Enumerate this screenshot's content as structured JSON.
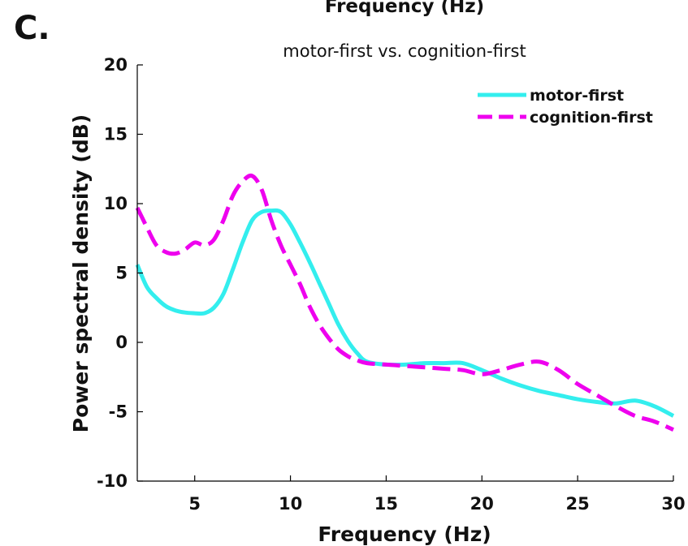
{
  "figure": {
    "panel_label": "C.",
    "clipped_top_label": "Frequency (Hz)"
  },
  "chart_data": {
    "type": "line",
    "title": "motor-first vs. cognition-first",
    "xlabel": "Frequency (Hz)",
    "ylabel": "Power spectral density (dB)",
    "xlim": [
      2,
      30
    ],
    "ylim": [
      -10,
      20
    ],
    "xticks": [
      5,
      10,
      15,
      20,
      25,
      30
    ],
    "xtick_labels": [
      "5",
      "10",
      "15",
      "20",
      "25",
      "30"
    ],
    "yticks": [
      -10,
      -5,
      0,
      5,
      10,
      15,
      20
    ],
    "ytick_labels": [
      "-10",
      "-5",
      "0",
      "5",
      "10",
      "15",
      "20"
    ],
    "grid": false,
    "legend_position": "top-right",
    "series": [
      {
        "name": "motor-first",
        "color": "#33eeee",
        "dash": "solid",
        "x": [
          2,
          2.5,
          3,
          3.5,
          4,
          4.5,
          5,
          5.5,
          6,
          6.5,
          7,
          7.5,
          8,
          8.5,
          9,
          9.5,
          10,
          10.5,
          11,
          11.5,
          12,
          12.5,
          13,
          13.5,
          14,
          15,
          16,
          17,
          18,
          19,
          20,
          21,
          22,
          23,
          24,
          25,
          26,
          27,
          28,
          29,
          30
        ],
        "values": [
          5.6,
          4.0,
          3.2,
          2.6,
          2.3,
          2.15,
          2.1,
          2.1,
          2.5,
          3.5,
          5.3,
          7.2,
          8.8,
          9.4,
          9.5,
          9.4,
          8.5,
          7.2,
          5.8,
          4.3,
          2.8,
          1.3,
          0.1,
          -0.8,
          -1.4,
          -1.6,
          -1.6,
          -1.5,
          -1.5,
          -1.5,
          -2.0,
          -2.6,
          -3.1,
          -3.5,
          -3.8,
          -4.1,
          -4.3,
          -4.4,
          -4.2,
          -4.6,
          -5.3
        ]
      },
      {
        "name": "cognition-first",
        "color": "#ee00ee",
        "dash": "dashed",
        "x": [
          2,
          2.5,
          3,
          3.5,
          4,
          4.5,
          5,
          5.5,
          6,
          6.5,
          7,
          7.5,
          8,
          8.5,
          9,
          9.5,
          10,
          10.5,
          11,
          11.5,
          12,
          12.5,
          13,
          13.5,
          14,
          15,
          16,
          17,
          18,
          19,
          20,
          21,
          22,
          23,
          24,
          25,
          26,
          27,
          28,
          29,
          30
        ],
        "values": [
          9.7,
          8.3,
          7.0,
          6.5,
          6.4,
          6.7,
          7.2,
          7.0,
          7.4,
          8.8,
          10.6,
          11.6,
          12.0,
          11.0,
          8.8,
          7.0,
          5.6,
          4.2,
          2.6,
          1.3,
          0.3,
          -0.5,
          -1.0,
          -1.3,
          -1.5,
          -1.6,
          -1.7,
          -1.8,
          -1.9,
          -2.0,
          -2.3,
          -2.0,
          -1.6,
          -1.4,
          -2.0,
          -3.0,
          -3.8,
          -4.6,
          -5.3,
          -5.7,
          -6.3
        ]
      }
    ]
  }
}
